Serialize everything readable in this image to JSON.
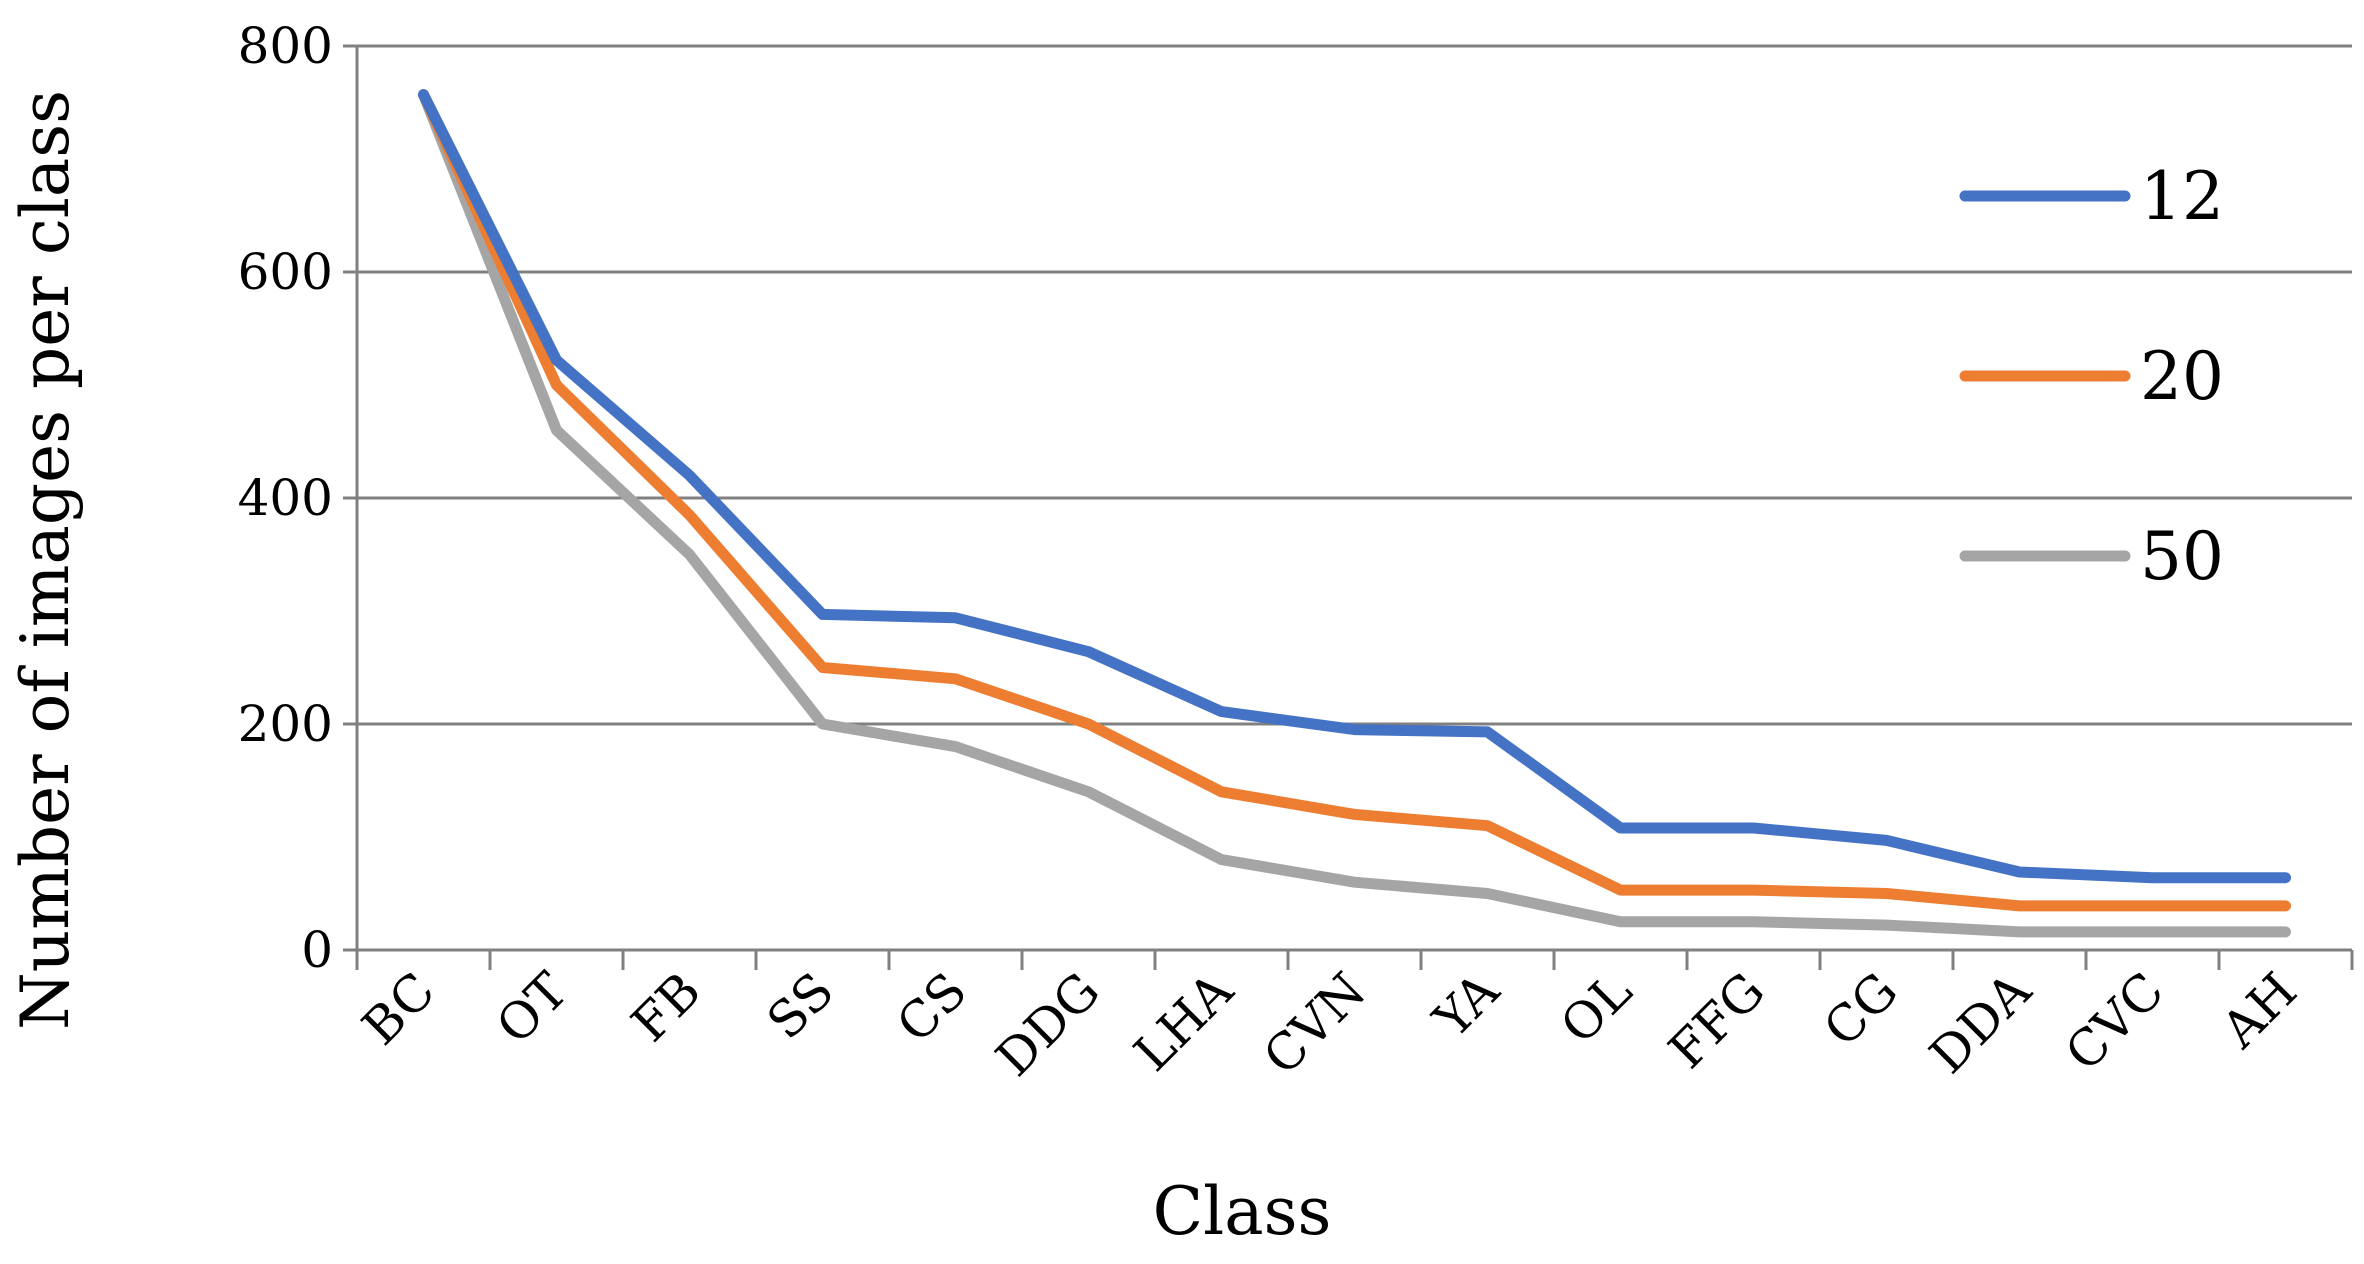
{
  "chart_data": {
    "type": "line",
    "title": "",
    "xlabel": "Class",
    "ylabel": "Number of images per class",
    "categories": [
      "BC",
      "OT",
      "FB",
      "SS",
      "CS",
      "DDG",
      "LHA",
      "CVN",
      "YA",
      "OL",
      "FFG",
      "CG",
      "DDA",
      "CVC",
      "AH"
    ],
    "ylim": [
      0,
      800
    ],
    "yticks": [
      0,
      200,
      400,
      600,
      800
    ],
    "grid": true,
    "legend_position": "right",
    "series": [
      {
        "name": "12",
        "color": "#4472C4",
        "values": [
          757,
          522,
          420,
          297,
          294,
          264,
          211,
          195,
          193,
          108,
          108,
          97,
          69,
          64,
          64
        ]
      },
      {
        "name": "20",
        "color": "#ED7D31",
        "values": [
          757,
          500,
          385,
          250,
          240,
          200,
          140,
          120,
          110,
          53,
          53,
          50,
          39,
          39,
          39
        ]
      },
      {
        "name": "50",
        "color": "#A5A5A5",
        "values": [
          757,
          460,
          350,
          200,
          180,
          140,
          80,
          60,
          50,
          25,
          25,
          22,
          16,
          16,
          16
        ]
      }
    ]
  }
}
